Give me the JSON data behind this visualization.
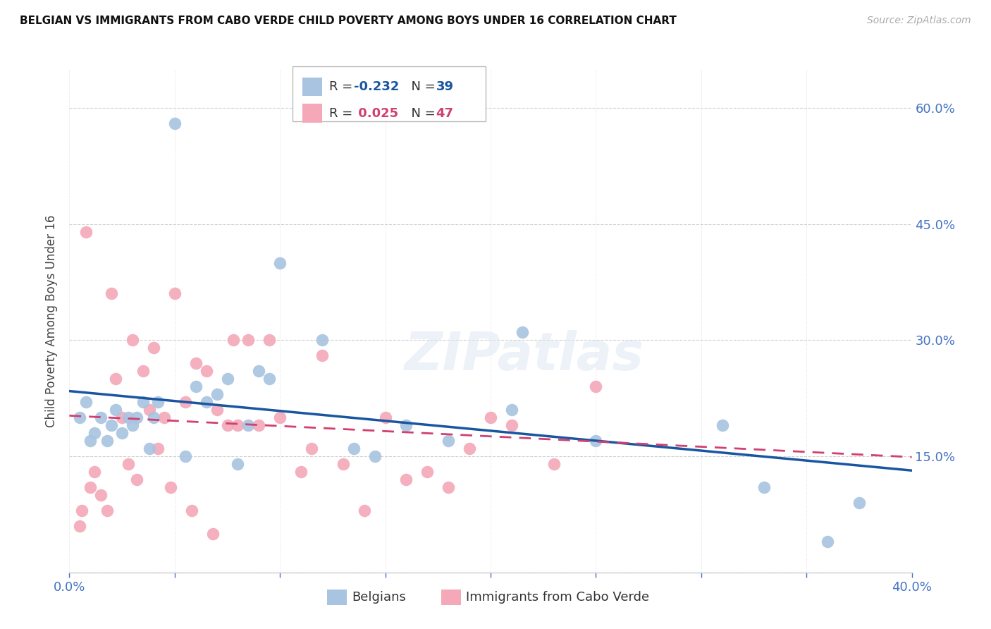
{
  "title": "BELGIAN VS IMMIGRANTS FROM CABO VERDE CHILD POVERTY AMONG BOYS UNDER 16 CORRELATION CHART",
  "source": "Source: ZipAtlas.com",
  "ylabel": "Child Poverty Among Boys Under 16",
  "xlim": [
    0.0,
    0.4
  ],
  "ylim": [
    0.0,
    0.65
  ],
  "ytick_vals": [
    0.0,
    0.15,
    0.3,
    0.45,
    0.6
  ],
  "xtick_vals": [
    0.0,
    0.05,
    0.1,
    0.15,
    0.2,
    0.25,
    0.3,
    0.35,
    0.4
  ],
  "belgian_color": "#a8c4e0",
  "cabo_verde_color": "#f4a8b8",
  "belgian_line_color": "#1a56a0",
  "cabo_verde_line_color": "#d04070",
  "R_belgian": -0.232,
  "N_belgian": 39,
  "R_cabo_verde": 0.025,
  "N_cabo_verde": 47,
  "watermark": "ZIPatlas",
  "belgians_x": [
    0.005,
    0.008,
    0.01,
    0.012,
    0.015,
    0.018,
    0.02,
    0.022,
    0.025,
    0.028,
    0.03,
    0.032,
    0.035,
    0.038,
    0.04,
    0.042,
    0.05,
    0.055,
    0.06,
    0.065,
    0.07,
    0.075,
    0.08,
    0.085,
    0.09,
    0.095,
    0.1,
    0.12,
    0.135,
    0.145,
    0.16,
    0.18,
    0.21,
    0.215,
    0.25,
    0.31,
    0.33,
    0.36,
    0.375
  ],
  "belgians_y": [
    0.2,
    0.22,
    0.17,
    0.18,
    0.2,
    0.17,
    0.19,
    0.21,
    0.18,
    0.2,
    0.19,
    0.2,
    0.22,
    0.16,
    0.2,
    0.22,
    0.58,
    0.15,
    0.24,
    0.22,
    0.23,
    0.25,
    0.14,
    0.19,
    0.26,
    0.25,
    0.4,
    0.3,
    0.16,
    0.15,
    0.19,
    0.17,
    0.21,
    0.31,
    0.17,
    0.19,
    0.11,
    0.04,
    0.09
  ],
  "cabo_verde_x": [
    0.005,
    0.006,
    0.008,
    0.01,
    0.012,
    0.015,
    0.018,
    0.02,
    0.022,
    0.025,
    0.028,
    0.03,
    0.032,
    0.035,
    0.038,
    0.04,
    0.042,
    0.045,
    0.048,
    0.05,
    0.055,
    0.058,
    0.06,
    0.065,
    0.068,
    0.07,
    0.075,
    0.078,
    0.08,
    0.085,
    0.09,
    0.095,
    0.1,
    0.11,
    0.115,
    0.12,
    0.13,
    0.14,
    0.15,
    0.16,
    0.17,
    0.18,
    0.19,
    0.2,
    0.21,
    0.23,
    0.25
  ],
  "cabo_verde_y": [
    0.06,
    0.08,
    0.44,
    0.11,
    0.13,
    0.1,
    0.08,
    0.36,
    0.25,
    0.2,
    0.14,
    0.3,
    0.12,
    0.26,
    0.21,
    0.29,
    0.16,
    0.2,
    0.11,
    0.36,
    0.22,
    0.08,
    0.27,
    0.26,
    0.05,
    0.21,
    0.19,
    0.3,
    0.19,
    0.3,
    0.19,
    0.3,
    0.2,
    0.13,
    0.16,
    0.28,
    0.14,
    0.08,
    0.2,
    0.12,
    0.13,
    0.11,
    0.16,
    0.2,
    0.19,
    0.14,
    0.24
  ]
}
